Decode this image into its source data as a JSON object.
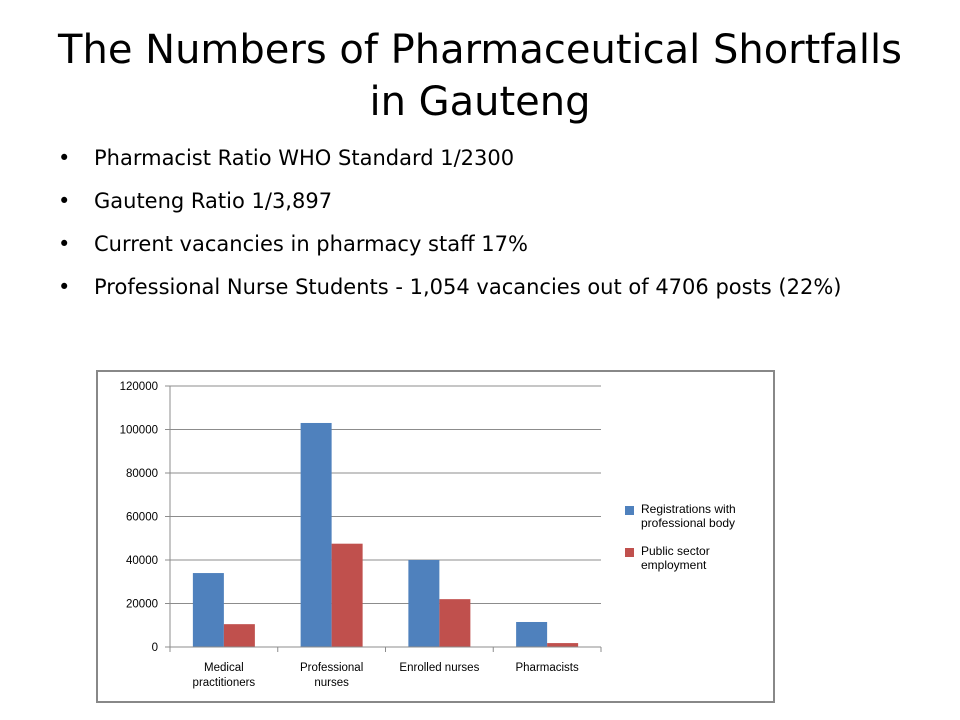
{
  "slide": {
    "title": "The Numbers of Pharmaceutical Shortfalls in Gauteng",
    "bullets": [
      "Pharmacist Ratio WHO Standard 1/2300",
      "Gauteng Ratio 1/3,897",
      "Current vacancies in pharmacy staff 17%",
      "Professional Nurse Students - 1,054 vacancies out of 4706 posts (22%)"
    ],
    "bullet_glyph": "•"
  },
  "chart_data": {
    "type": "bar",
    "categories": [
      [
        "Medical",
        "practitioners"
      ],
      [
        "Professional",
        "nurses"
      ],
      [
        "Enrolled nurses"
      ],
      [
        "Pharmacists"
      ]
    ],
    "series": [
      {
        "name": "Registrations with professional body",
        "color": "#4F81BD",
        "values": [
          34000,
          103000,
          40000,
          11500
        ]
      },
      {
        "name": "Public sector employment",
        "color": "#C0504D",
        "values": [
          10500,
          47500,
          22000,
          1800
        ]
      }
    ],
    "ylim": [
      0,
      120000
    ],
    "yticks": [
      "0",
      "20000",
      "40000",
      "60000",
      "80000",
      "100000",
      "120000"
    ],
    "grid": true,
    "legend_position": "right",
    "title": "",
    "xlabel": "",
    "ylabel": ""
  }
}
